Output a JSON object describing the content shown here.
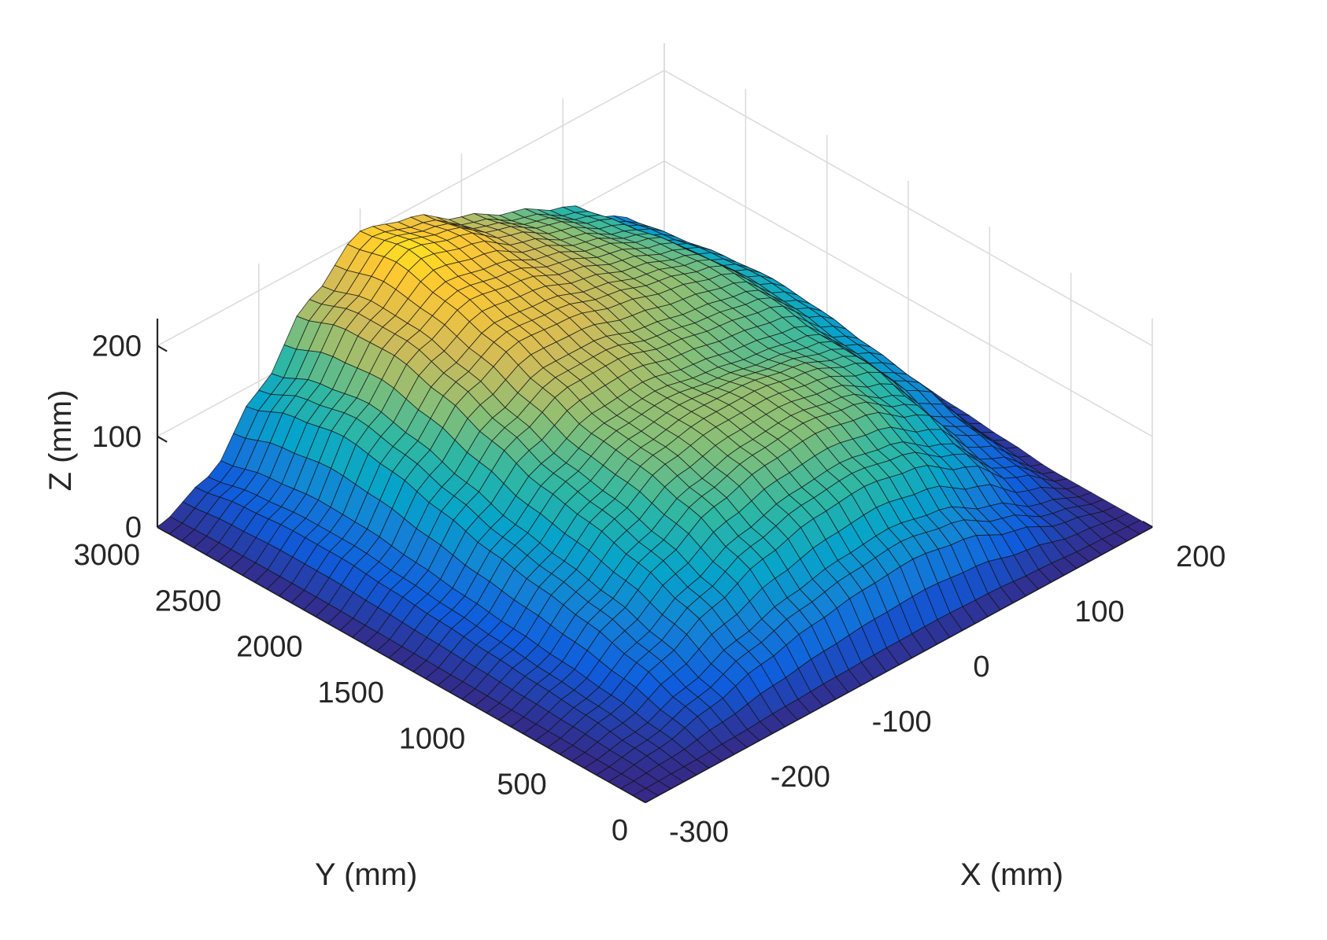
{
  "chart_data": {
    "type": "surface3d",
    "title": "",
    "xlabel": "X (mm)",
    "ylabel": "Y (mm)",
    "zlabel": "Z (mm)",
    "x_ticks": [
      "-300",
      "-200",
      "-100",
      "0",
      "100",
      "200"
    ],
    "y_ticks": [
      "0",
      "500",
      "1000",
      "1500",
      "2000",
      "2500",
      "3000"
    ],
    "z_ticks": [
      "0",
      "100",
      "200"
    ],
    "xlim": [
      -300,
      200
    ],
    "ylim": [
      0,
      3000
    ],
    "zlim": [
      0,
      230
    ],
    "grid": true,
    "colormap": "parula",
    "colormap_colors": [
      "#352a87",
      "#0f5cdd",
      "#1481d6",
      "#06a4ca",
      "#2eb7a4",
      "#87bf77",
      "#d1bb59",
      "#fec832",
      "#f9fb0e"
    ],
    "mesh_color": "#111111",
    "x": [
      -300,
      -250,
      -200,
      -150,
      -100,
      -50,
      0,
      50,
      100,
      150,
      200
    ],
    "y": [
      0,
      300,
      600,
      900,
      1200,
      1500,
      1800,
      2100,
      2400,
      2700,
      3000
    ],
    "z": [
      [
        0,
        0,
        0,
        0,
        0,
        0,
        0,
        0,
        0,
        0,
        0
      ],
      [
        0,
        8,
        25,
        45,
        60,
        70,
        75,
        65,
        40,
        15,
        0
      ],
      [
        0,
        15,
        45,
        75,
        100,
        115,
        120,
        110,
        80,
        35,
        0
      ],
      [
        0,
        20,
        60,
        95,
        125,
        140,
        145,
        135,
        105,
        50,
        5
      ],
      [
        0,
        25,
        70,
        110,
        140,
        150,
        150,
        140,
        120,
        70,
        10
      ],
      [
        0,
        30,
        80,
        120,
        145,
        150,
        140,
        130,
        120,
        80,
        15
      ],
      [
        0,
        35,
        95,
        140,
        165,
        165,
        150,
        140,
        130,
        90,
        20
      ],
      [
        0,
        40,
        110,
        160,
        185,
        180,
        165,
        150,
        135,
        95,
        25
      ],
      [
        0,
        40,
        120,
        175,
        200,
        190,
        170,
        150,
        130,
        90,
        20
      ],
      [
        0,
        35,
        110,
        175,
        215,
        200,
        170,
        145,
        120,
        80,
        15
      ],
      [
        0,
        25,
        90,
        160,
        205,
        190,
        160,
        135,
        110,
        70,
        10
      ]
    ]
  }
}
